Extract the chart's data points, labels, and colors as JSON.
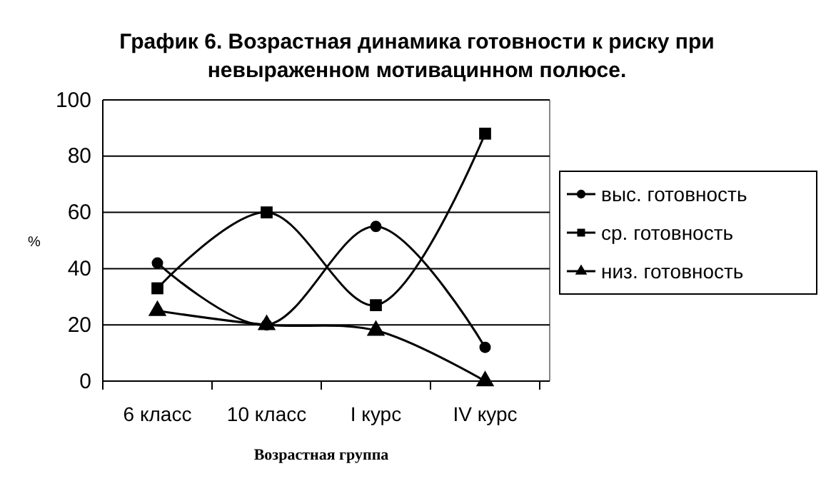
{
  "chart_data": {
    "type": "line",
    "title": "График 6. Возрастная динамика готовности к риску при\nневыраженном мотивацинном полюсе.",
    "xlabel": "Возрастная группа",
    "ylabel": "%",
    "categories": [
      "6 класс",
      "10 класс",
      "I курс",
      "IV курс"
    ],
    "series": [
      {
        "name": "выс. готовность",
        "color": "#000000",
        "marker": "circle",
        "values": [
          42,
          20,
          55,
          12
        ]
      },
      {
        "name": "ср. готовность",
        "color": "#000000",
        "marker": "square",
        "values": [
          33,
          60,
          27,
          88
        ]
      },
      {
        "name": "низ. готовность",
        "color": "#000000",
        "marker": "triangle",
        "values": [
          25,
          20,
          18,
          0
        ]
      }
    ],
    "ylim": [
      0,
      100
    ],
    "yticks": [
      0,
      20,
      40,
      60,
      80,
      100
    ],
    "grid": "y",
    "legend": "right",
    "line_style": "solid"
  }
}
